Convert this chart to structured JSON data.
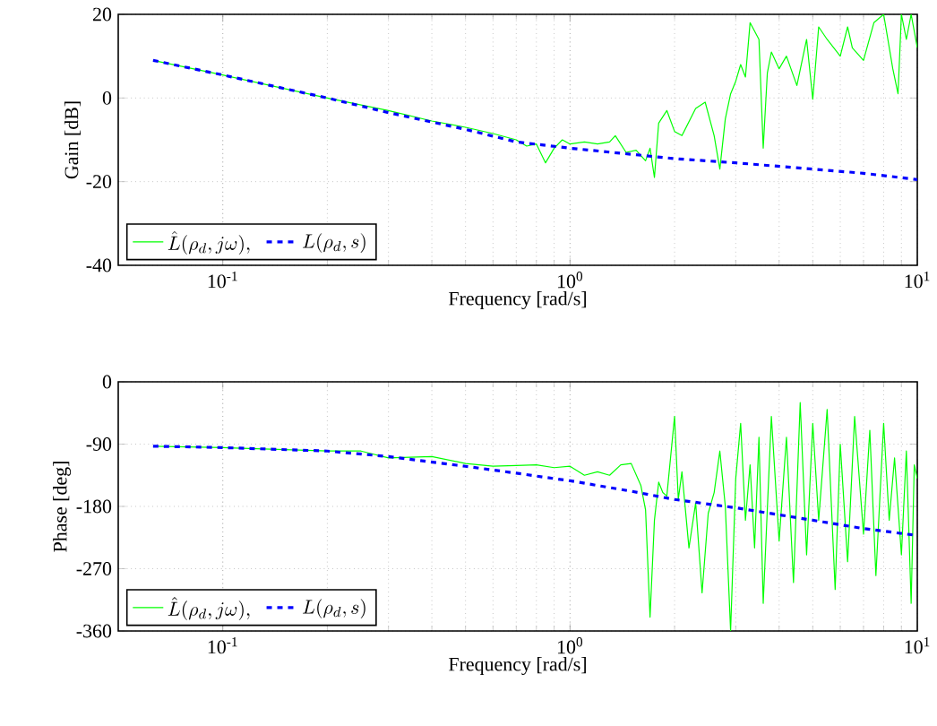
{
  "chart_data": [
    {
      "type": "line",
      "xlabel": "Frequency [rad/s]",
      "ylabel": "Gain [dB]",
      "log": "x",
      "grid": true,
      "legend": "bottom left",
      "xlim": [
        0.05,
        10
      ],
      "xticks": [
        {
          "value": 0.1,
          "label": "10$^{-1}$"
        },
        {
          "value": 1,
          "label": "10$^{0}$"
        },
        {
          "value": 10,
          "label": "10$^{1}$"
        }
      ],
      "ylim": [
        -40,
        20
      ],
      "yticks": [
        -40,
        -20,
        0,
        20
      ],
      "series": [
        {
          "name": "\\hat{L}(\\rho_d, j\\omega),",
          "color": "#00ff00",
          "line_style": "solid",
          "x": [
            0.063,
            0.1,
            0.2,
            0.3,
            0.4,
            0.5,
            0.6,
            0.7,
            0.75,
            0.8,
            0.85,
            0.9,
            0.95,
            1.0,
            1.1,
            1.2,
            1.3,
            1.35,
            1.45,
            1.55,
            1.65,
            1.7,
            1.75,
            1.8,
            1.9,
            2.0,
            2.1,
            2.3,
            2.45,
            2.6,
            2.7,
            2.8,
            2.9,
            3.0,
            3.1,
            3.2,
            3.3,
            3.5,
            3.6,
            3.7,
            3.8,
            4.0,
            4.2,
            4.5,
            4.8,
            5.0,
            5.2,
            5.5,
            6.0,
            6.3,
            6.5,
            7.0,
            7.5,
            8.0,
            8.5,
            8.8,
            9.0,
            9.3,
            9.6,
            10
          ],
          "values": [
            9,
            5.5,
            0,
            -3,
            -5.5,
            -7,
            -8.5,
            -10,
            -11.5,
            -11,
            -15.5,
            -12,
            -10,
            -11,
            -10.5,
            -11,
            -10.5,
            -9,
            -13,
            -12.5,
            -15,
            -12,
            -19,
            -6,
            -3,
            -8,
            -9,
            -2.5,
            -1,
            -9,
            -17,
            -5,
            1,
            4,
            8,
            5,
            18,
            14,
            -12,
            6,
            11,
            7,
            10,
            3,
            14,
            -0.3,
            17,
            14,
            10,
            17,
            12,
            9,
            18,
            20,
            7,
            1,
            20,
            14,
            20,
            12
          ]
        },
        {
          "name": "L(\\rho_d, s)",
          "color": "#0000ff",
          "line_style": "dashed",
          "x": [
            0.063,
            0.1,
            0.2,
            0.3,
            0.5,
            0.7,
            1,
            2,
            3,
            5,
            7,
            10
          ],
          "values": [
            9,
            5.5,
            0,
            -3.5,
            -7.5,
            -10.5,
            -12,
            -14.5,
            -15.5,
            -17,
            -18,
            -19.5
          ]
        }
      ]
    },
    {
      "type": "line",
      "xlabel": "Frequency [rad/s]",
      "ylabel": "Phase [deg]",
      "log": "x",
      "grid": true,
      "legend": "bottom left",
      "xlim": [
        0.05,
        10
      ],
      "xticks": [
        {
          "value": 0.1,
          "label": "10$^{-1}$"
        },
        {
          "value": 1,
          "label": "10$^{0}$"
        },
        {
          "value": 10,
          "label": "10$^{1}$"
        }
      ],
      "ylim": [
        -360,
        0
      ],
      "yticks": [
        -360,
        -270,
        -180,
        -90,
        0
      ],
      "series": [
        {
          "name": "\\hat{L}(\\rho_d, j\\omega),",
          "color": "#00ff00",
          "line_style": "solid",
          "x": [
            0.063,
            0.1,
            0.2,
            0.25,
            0.3,
            0.4,
            0.5,
            0.6,
            0.7,
            0.8,
            0.9,
            1.0,
            1.1,
            1.2,
            1.3,
            1.4,
            1.5,
            1.6,
            1.65,
            1.7,
            1.75,
            1.8,
            1.85,
            1.9,
            2.0,
            2.05,
            2.1,
            2.2,
            2.3,
            2.4,
            2.5,
            2.6,
            2.7,
            2.8,
            2.9,
            3.0,
            3.1,
            3.2,
            3.3,
            3.4,
            3.5,
            3.6,
            3.8,
            4.0,
            4.2,
            4.4,
            4.6,
            4.8,
            5.0,
            5.2,
            5.5,
            5.8,
            6.0,
            6.3,
            6.6,
            7.0,
            7.3,
            7.6,
            8.0,
            8.3,
            8.6,
            9.0,
            9.3,
            9.6,
            9.8,
            10
          ],
          "values": [
            -93,
            -95,
            -100,
            -100,
            -110,
            -108,
            -118,
            -122,
            -121,
            -120,
            -124,
            -122,
            -135,
            -130,
            -135,
            -120,
            -118,
            -150,
            -185,
            -340,
            -200,
            -145,
            -160,
            -165,
            -50,
            -170,
            -130,
            -240,
            -175,
            -305,
            -190,
            -160,
            -100,
            -180,
            -360,
            -140,
            -60,
            -200,
            -120,
            -240,
            -80,
            -320,
            -50,
            -230,
            -80,
            -290,
            -30,
            -250,
            -60,
            -200,
            -40,
            -300,
            -90,
            -260,
            -50,
            -220,
            -70,
            -280,
            -60,
            -200,
            -110,
            -250,
            -100,
            -320,
            -120,
            -140
          ]
        },
        {
          "name": "L(\\rho_d, s)",
          "color": "#0000ff",
          "line_style": "dashed",
          "x": [
            0.063,
            0.1,
            0.2,
            0.3,
            0.5,
            0.7,
            1,
            1.5,
            2,
            3,
            5,
            7,
            10
          ],
          "values": [
            -93,
            -95,
            -100,
            -108,
            -122,
            -132,
            -143,
            -158,
            -170,
            -182,
            -200,
            -212,
            -222
          ]
        }
      ]
    }
  ]
}
